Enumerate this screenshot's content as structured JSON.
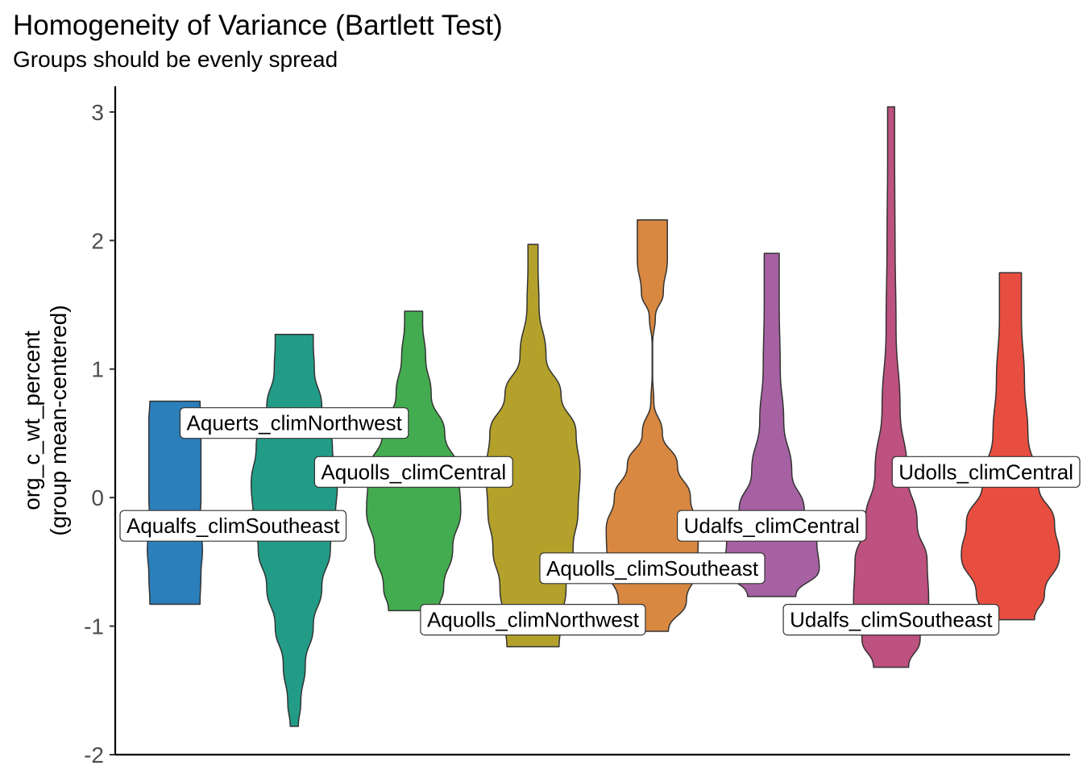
{
  "title": "Homogeneity of Variance (Bartlett Test)",
  "subtitle": "Groups should be evenly spread",
  "chart_data": {
    "type": "violin",
    "title": "Homogeneity of Variance (Bartlett Test)",
    "subtitle": "Groups should be evenly spread",
    "xlabel": "",
    "ylabel_line1": "org_c_wt_percent",
    "ylabel_line2": "(group mean-centered)",
    "ylim": [
      -2.0,
      3.2
    ],
    "yticks": [
      -2,
      -1,
      0,
      1,
      2,
      3
    ],
    "ytick_labels": [
      "-2",
      "-1",
      "0",
      "1",
      "2",
      "3"
    ],
    "grid": false,
    "legend": "none",
    "series": [
      {
        "name": "Aqualfs_climSoutheast",
        "color": "#2B7FBA",
        "min": -0.83,
        "max": 0.75,
        "label_y": -0.22,
        "profile": [
          [
            -0.83,
            0.5
          ],
          [
            -0.6,
            0.52
          ],
          [
            -0.4,
            0.55
          ],
          [
            -0.2,
            0.5
          ],
          [
            0.0,
            0.52
          ],
          [
            0.3,
            0.52
          ],
          [
            0.6,
            0.52
          ],
          [
            0.75,
            0.5
          ]
        ]
      },
      {
        "name": "Aquerts_climNorthwest",
        "color": "#229C87",
        "min": -1.78,
        "max": 1.27,
        "label_y": 0.58,
        "profile": [
          [
            -1.78,
            0.08
          ],
          [
            -1.6,
            0.13
          ],
          [
            -1.3,
            0.22
          ],
          [
            -1.0,
            0.38
          ],
          [
            -0.7,
            0.55
          ],
          [
            -0.4,
            0.72
          ],
          [
            -0.15,
            0.82
          ],
          [
            0.1,
            0.86
          ],
          [
            0.4,
            0.76
          ],
          [
            0.7,
            0.55
          ],
          [
            1.0,
            0.4
          ],
          [
            1.2,
            0.38
          ],
          [
            1.27,
            0.38
          ]
        ]
      },
      {
        "name": "Aquolls_climCentral",
        "color": "#44AC50",
        "min": -0.88,
        "max": 1.45,
        "label_y": 0.2,
        "profile": [
          [
            -0.88,
            0.5
          ],
          [
            -0.7,
            0.6
          ],
          [
            -0.4,
            0.78
          ],
          [
            -0.1,
            0.94
          ],
          [
            0.2,
            0.9
          ],
          [
            0.5,
            0.62
          ],
          [
            0.8,
            0.35
          ],
          [
            1.1,
            0.24
          ],
          [
            1.35,
            0.18
          ],
          [
            1.45,
            0.18
          ]
        ]
      },
      {
        "name": "Aquolls_climNorthwest",
        "color": "#B3A12B",
        "min": -1.16,
        "max": 1.97,
        "label_y": -0.95,
        "profile": [
          [
            -1.16,
            0.52
          ],
          [
            -1.0,
            0.55
          ],
          [
            -0.7,
            0.66
          ],
          [
            -0.4,
            0.8
          ],
          [
            -0.1,
            0.9
          ],
          [
            0.2,
            0.94
          ],
          [
            0.5,
            0.86
          ],
          [
            0.8,
            0.56
          ],
          [
            1.1,
            0.26
          ],
          [
            1.5,
            0.12
          ],
          [
            1.8,
            0.1
          ],
          [
            1.97,
            0.1
          ]
        ]
      },
      {
        "name": "Aquolls_climSoutheast",
        "color": "#D88840",
        "min": -1.04,
        "max": 2.16,
        "label_y": -0.55,
        "profile": [
          [
            -1.04,
            0.32
          ],
          [
            -0.8,
            0.68
          ],
          [
            -0.55,
            0.9
          ],
          [
            -0.25,
            0.92
          ],
          [
            0.0,
            0.76
          ],
          [
            0.25,
            0.5
          ],
          [
            0.5,
            0.2
          ],
          [
            0.75,
            0.03
          ],
          [
            0.95,
            0.005
          ],
          [
            1.2,
            0.005
          ],
          [
            1.4,
            0.06
          ],
          [
            1.6,
            0.22
          ],
          [
            1.85,
            0.3
          ],
          [
            2.16,
            0.3
          ]
        ]
      },
      {
        "name": "Udalfs_climCentral",
        "color": "#A661A2",
        "min": -0.77,
        "max": 1.9,
        "label_y": -0.22,
        "profile": [
          [
            -0.77,
            0.48
          ],
          [
            -0.55,
            0.95
          ],
          [
            -0.35,
            0.9
          ],
          [
            -0.1,
            0.65
          ],
          [
            0.2,
            0.4
          ],
          [
            0.6,
            0.24
          ],
          [
            1.0,
            0.17
          ],
          [
            1.5,
            0.15
          ],
          [
            1.9,
            0.15
          ]
        ]
      },
      {
        "name": "Udalfs_climSoutheast",
        "color": "#BD5180",
        "min": -1.32,
        "max": 3.04,
        "label_y": -0.95,
        "profile": [
          [
            -1.32,
            0.35
          ],
          [
            -1.1,
            0.58
          ],
          [
            -0.8,
            0.75
          ],
          [
            -0.5,
            0.72
          ],
          [
            -0.2,
            0.52
          ],
          [
            0.2,
            0.32
          ],
          [
            0.7,
            0.18
          ],
          [
            1.3,
            0.1
          ],
          [
            2.0,
            0.08
          ],
          [
            2.6,
            0.07
          ],
          [
            3.04,
            0.07
          ]
        ]
      },
      {
        "name": "Udolls_climCentral",
        "color": "#E84E40",
        "min": -0.95,
        "max": 1.75,
        "label_y": 0.2,
        "profile": [
          [
            -0.95,
            0.48
          ],
          [
            -0.75,
            0.68
          ],
          [
            -0.45,
            0.98
          ],
          [
            -0.2,
            0.88
          ],
          [
            0.1,
            0.56
          ],
          [
            0.5,
            0.35
          ],
          [
            0.9,
            0.28
          ],
          [
            1.4,
            0.22
          ],
          [
            1.75,
            0.22
          ]
        ]
      }
    ]
  }
}
